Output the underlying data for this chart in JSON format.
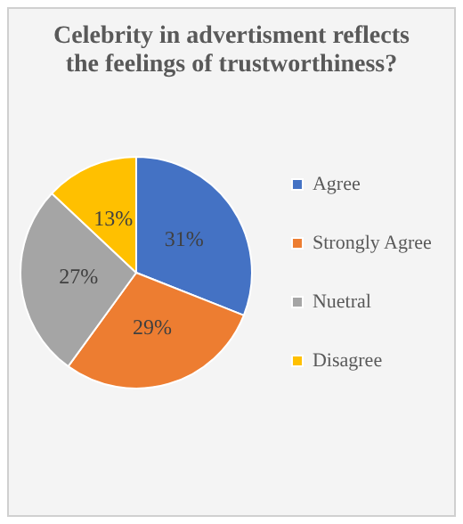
{
  "chart_data": {
    "type": "pie",
    "title": "Celebrity in advertisment reflects the feelings of trustworthiness?",
    "categories": [
      "Agree",
      "Strongly Agree",
      "Nuetral",
      "Disagree"
    ],
    "values": [
      31,
      29,
      27,
      13
    ],
    "colors": [
      "#4472c4",
      "#ed7d31",
      "#a5a5a5",
      "#ffc000"
    ],
    "value_labels": [
      "31%",
      "29%",
      "27%",
      "13%"
    ],
    "legend": "right"
  }
}
